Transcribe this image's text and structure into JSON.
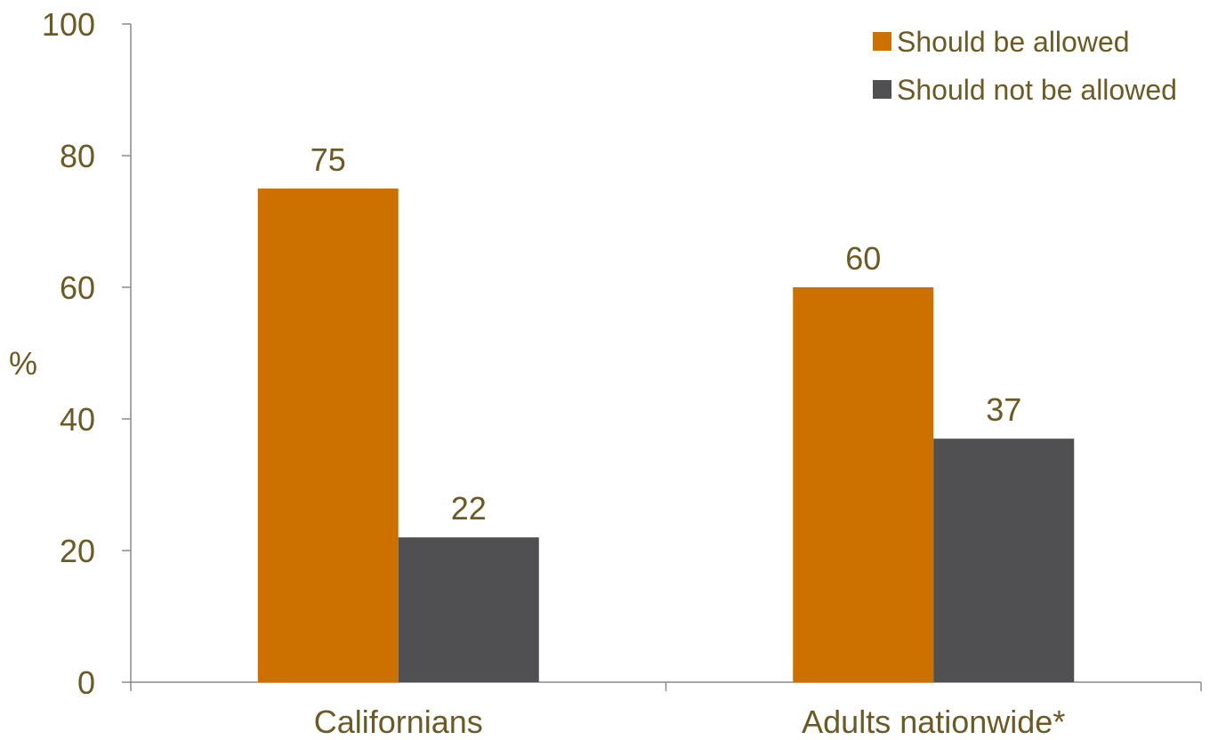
{
  "chart_data": {
    "type": "bar",
    "categories": [
      "Californians",
      "Adults nationwide*"
    ],
    "series": [
      {
        "name": "Should be allowed",
        "values": [
          75,
          60
        ]
      },
      {
        "name": "Should not be allowed",
        "values": [
          22,
          37
        ]
      }
    ],
    "title": "",
    "xlabel": "",
    "ylabel": "%",
    "ylim": [
      0,
      100
    ],
    "yticks": [
      0,
      20,
      40,
      60,
      80,
      100
    ],
    "grid": false,
    "legend": "top-right",
    "colors": [
      "#cc7000",
      "#505052"
    ],
    "text_color": "#6b5a23",
    "axis_color": "#8a8a8a"
  }
}
